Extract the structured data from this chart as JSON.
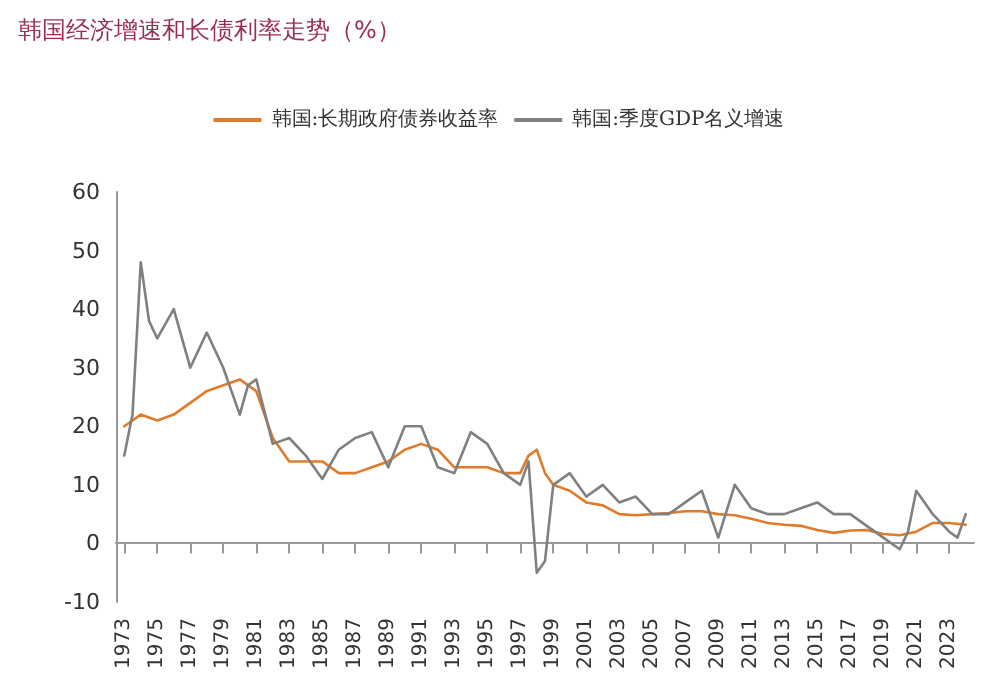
{
  "chart_data": {
    "type": "line",
    "title": "韩国经济增速和长债利率走势（%）",
    "xlim": [
      1972.5,
      2024.5
    ],
    "xticks": [
      1973,
      1975,
      1977,
      1979,
      1981,
      1983,
      1985,
      1987,
      1989,
      1991,
      1993,
      1995,
      1997,
      1999,
      2001,
      2003,
      2005,
      2007,
      2009,
      2011,
      2013,
      2015,
      2017,
      2019,
      2021,
      2023
    ],
    "ylim": [
      -10,
      60
    ],
    "yticks": [
      -10,
      0,
      10,
      20,
      30,
      40,
      50,
      60
    ],
    "legend": "top",
    "marker": "none",
    "line_style": "solid",
    "series": [
      {
        "name": "韩国:长期政府债券收益率",
        "color": "#e07b2a",
        "x": [
          1973,
          1974,
          1975,
          1976,
          1977,
          1978,
          1979,
          1980,
          1981,
          1982,
          1983,
          1984,
          1985,
          1986,
          1987,
          1988,
          1989,
          1990,
          1991,
          1992,
          1993,
          1994,
          1995,
          1996,
          1997,
          1997.5,
          1998,
          1998.5,
          1999,
          2000,
          2001,
          2002,
          2003,
          2004,
          2005,
          2006,
          2007,
          2008,
          2009,
          2010,
          2011,
          2012,
          2013,
          2014,
          2015,
          2016,
          2017,
          2018,
          2019,
          2020,
          2021,
          2022,
          2023,
          2024
        ],
        "values": [
          20,
          22,
          21,
          22,
          24,
          26,
          27,
          28,
          26,
          18,
          14,
          14,
          14,
          12,
          12,
          13,
          14,
          16,
          17,
          16,
          13,
          13,
          13,
          12,
          12,
          15,
          16,
          12,
          10,
          9,
          7,
          6.5,
          5,
          4.8,
          5,
          5.2,
          5.5,
          5.5,
          5,
          4.8,
          4.2,
          3.5,
          3.2,
          3,
          2.3,
          1.8,
          2.2,
          2.3,
          1.6,
          1.4,
          2,
          3.5,
          3.5,
          3.2
        ]
      },
      {
        "name": "韩国:季度GDP名义增速",
        "color": "#808080",
        "x": [
          1973,
          1973.5,
          1974,
          1974.5,
          1975,
          1976,
          1977,
          1978,
          1979,
          1980,
          1980.5,
          1981,
          1982,
          1983,
          1984,
          1985,
          1986,
          1987,
          1988,
          1989,
          1990,
          1991,
          1992,
          1993,
          1994,
          1995,
          1996,
          1997,
          1997.5,
          1998,
          1998.5,
          1999,
          2000,
          2001,
          2002,
          2003,
          2004,
          2005,
          2006,
          2007,
          2008,
          2009,
          2010,
          2011,
          2012,
          2013,
          2014,
          2015,
          2016,
          2017,
          2018,
          2019,
          2020,
          2020.5,
          2021,
          2022,
          2023,
          2023.5,
          2024
        ],
        "values": [
          15,
          22,
          48,
          38,
          35,
          40,
          30,
          36,
          30,
          22,
          27,
          28,
          17,
          18,
          15,
          11,
          16,
          18,
          19,
          13,
          20,
          20,
          13,
          12,
          19,
          17,
          12,
          10,
          14,
          -5,
          -3,
          10,
          12,
          8,
          10,
          7,
          8,
          5,
          5,
          7,
          9,
          1,
          10,
          6,
          5,
          5,
          6,
          7,
          5,
          5,
          3,
          1,
          -1,
          2,
          9,
          5,
          2,
          1,
          5
        ]
      }
    ]
  }
}
